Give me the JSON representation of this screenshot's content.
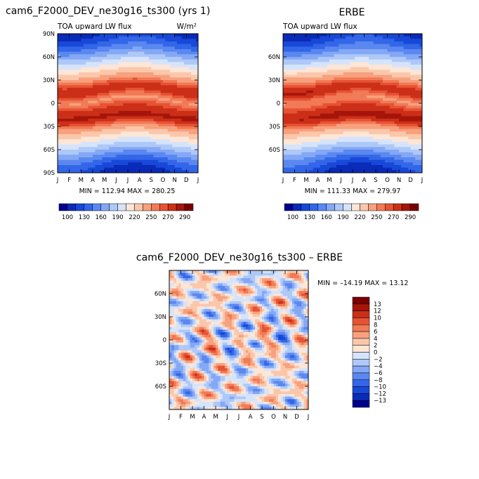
{
  "chart_data": [
    {
      "type": "heatmap",
      "title": "cam6_F2000_DEV_ne30g16_ts300 (yrs 1)",
      "subtitle": "TOA upward LW flux",
      "units": "W/m²",
      "x_ticks": [
        "J",
        "F",
        "M",
        "A",
        "M",
        "J",
        "J",
        "A",
        "S",
        "O",
        "N",
        "D",
        "J"
      ],
      "y_ticks": [
        "90N",
        "60N",
        "30N",
        "0",
        "30S",
        "60S",
        "90S"
      ],
      "stats": "MIN = 112.94  MAX = 280.25",
      "min": 112.94,
      "max": 280.25,
      "colorbar_labels": [
        "100",
        "130",
        "160",
        "190",
        "220",
        "250",
        "270",
        "290"
      ]
    },
    {
      "type": "heatmap",
      "title": "ERBE",
      "subtitle": "TOA upward LW flux",
      "x_ticks": [
        "J",
        "F",
        "M",
        "A",
        "M",
        "J",
        "J",
        "A",
        "S",
        "O",
        "N",
        "D",
        "J"
      ],
      "y_ticks": [
        "60N",
        "30N",
        "0",
        "30S",
        "60S"
      ],
      "stats": "MIN = 111.33  MAX = 279.97",
      "min": 111.33,
      "max": 279.97,
      "colorbar_labels": [
        "100",
        "130",
        "160",
        "190",
        "220",
        "250",
        "270",
        "290"
      ]
    },
    {
      "type": "heatmap",
      "title": "cam6_F2000_DEV_ne30g16_ts300 – ERBE",
      "x_ticks": [
        "J",
        "F",
        "M",
        "A",
        "M",
        "J",
        "J",
        "A",
        "S",
        "O",
        "N",
        "D",
        "J"
      ],
      "y_ticks": [
        "60N",
        "30N",
        "0",
        "30S",
        "60S"
      ],
      "stats": "MIN = –14.19  MAX =  13.12",
      "min": -14.19,
      "max": 13.12,
      "colorbar_labels": [
        "13",
        "12",
        "10",
        "8",
        "6",
        "4",
        "2",
        "0",
        "−2",
        "−4",
        "−6",
        "−8",
        "−10",
        "−12",
        "−13"
      ]
    }
  ],
  "colors": {
    "abs_scale": [
      "#00008f",
      "#0a2ab8",
      "#1848d8",
      "#3366e8",
      "#5a88f0",
      "#84a8f5",
      "#aec8f8",
      "#d6e4fb",
      "#fde6d6",
      "#fbc7ab",
      "#f7a17e",
      "#f27a56",
      "#e65334",
      "#cc2f18",
      "#a5150b",
      "#7a0000"
    ],
    "diff_scale": [
      "#7a0000",
      "#a5150b",
      "#cc2f18",
      "#e65334",
      "#f27a56",
      "#f7a17e",
      "#fbc7ab",
      "#fde6d6",
      "#d6e4fb",
      "#aec8f8",
      "#84a8f5",
      "#5a88f0",
      "#3366e8",
      "#1848d8",
      "#0a2ab8",
      "#00008f"
    ]
  }
}
